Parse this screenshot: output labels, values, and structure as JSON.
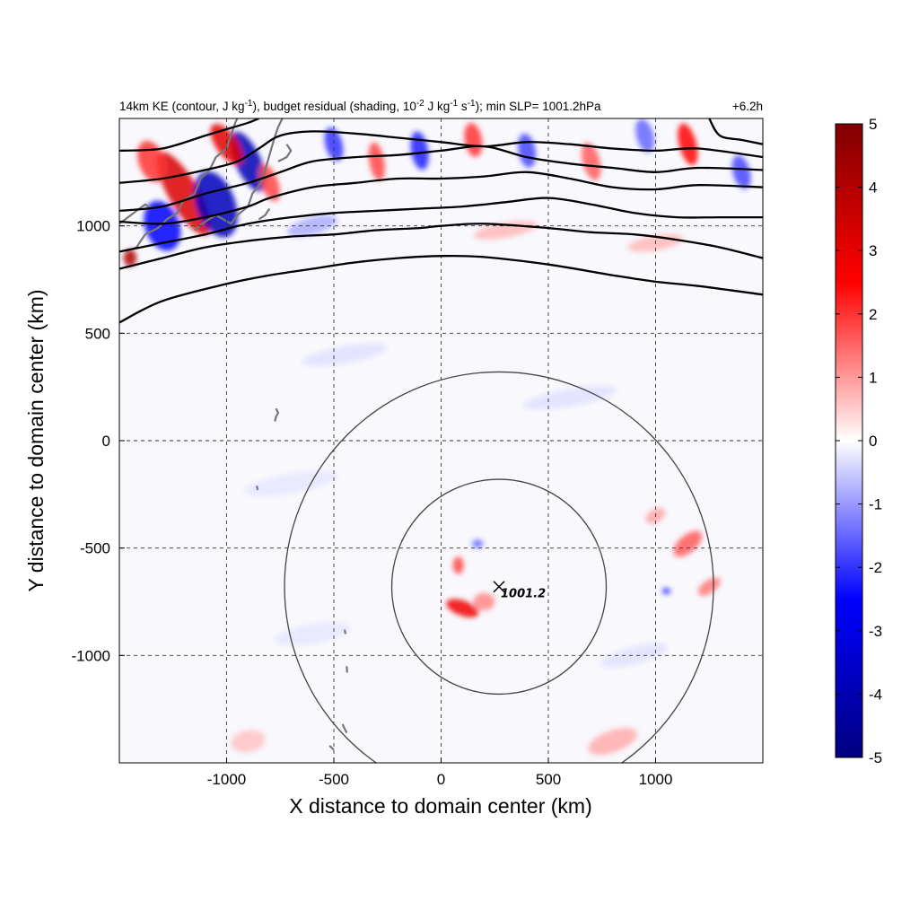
{
  "chart_data": {
    "type": "heatmap",
    "title": {
      "p1": "14km KE (contour, J kg",
      "p1_sup": "-1",
      "p2": "), budget residual (shading, 10",
      "p2_sup": "-2",
      "p3": " J kg",
      "p3_sup": "-1",
      "p4": " s",
      "p4_sup": "-1",
      "p5": "); min SLP= 1001.2hPa"
    },
    "time_label": "+6.2h",
    "xlabel": "X distance to domain center (km)",
    "ylabel": "Y distance to domain center (km)",
    "xlim": [
      -1500,
      1500
    ],
    "ylim": [
      -1500,
      1500
    ],
    "xticks": [
      -1000,
      -500,
      0,
      500,
      1000
    ],
    "yticks": [
      1000,
      500,
      0,
      -500,
      -1000
    ],
    "grid": true,
    "colorbar": {
      "range": [
        -5,
        5
      ],
      "ticks": [
        5,
        4,
        3,
        2,
        1,
        0,
        -1,
        -2,
        -3,
        -4,
        -5
      ],
      "colors": [
        "#000080",
        "#0000ff",
        "#ffffff",
        "#ff0000",
        "#800000"
      ]
    },
    "storm_center": {
      "x": 270,
      "y": -680,
      "label": "1001.2"
    },
    "range_rings_km": [
      500,
      1000
    ],
    "ke_contours": [
      [
        [
          -1500,
          550
        ],
        [
          -1300,
          650
        ],
        [
          -1000,
          730
        ],
        [
          -800,
          770
        ],
        [
          -600,
          800
        ],
        [
          -400,
          830
        ],
        [
          -200,
          850
        ],
        [
          0,
          860
        ],
        [
          200,
          855
        ],
        [
          500,
          820
        ],
        [
          800,
          770
        ],
        [
          1000,
          740
        ],
        [
          1200,
          720
        ],
        [
          1500,
          680
        ]
      ],
      [
        [
          -1500,
          800
        ],
        [
          -1300,
          850
        ],
        [
          -1100,
          900
        ],
        [
          -900,
          930
        ],
        [
          -700,
          950
        ],
        [
          -500,
          960
        ],
        [
          -300,
          980
        ],
        [
          -100,
          990
        ],
        [
          0,
          1000
        ],
        [
          200,
          1010
        ],
        [
          500,
          990
        ],
        [
          700,
          970
        ],
        [
          900,
          960
        ],
        [
          1100,
          935
        ],
        [
          1300,
          900
        ],
        [
          1500,
          850
        ]
      ],
      [
        [
          -1500,
          880
        ],
        [
          -1300,
          920
        ],
        [
          -1100,
          960
        ],
        [
          -900,
          1010
        ],
        [
          -700,
          1040
        ],
        [
          -500,
          1060
        ],
        [
          -300,
          1070
        ],
        [
          -100,
          1080
        ],
        [
          100,
          1090
        ],
        [
          300,
          1110
        ],
        [
          500,
          1130
        ],
        [
          700,
          1100
        ],
        [
          900,
          1060
        ],
        [
          1100,
          1040
        ],
        [
          1300,
          1040
        ],
        [
          1500,
          1040
        ]
      ],
      [
        [
          -1500,
          1020
        ],
        [
          -1300,
          1010
        ],
        [
          -1100,
          1040
        ],
        [
          -900,
          1090
        ],
        [
          -800,
          1130
        ],
        [
          -600,
          1180
        ],
        [
          -400,
          1200
        ],
        [
          -200,
          1220
        ],
        [
          0,
          1220
        ],
        [
          200,
          1230
        ],
        [
          400,
          1250
        ],
        [
          600,
          1220
        ],
        [
          800,
          1180
        ],
        [
          1000,
          1170
        ],
        [
          1200,
          1190
        ],
        [
          1500,
          1180
        ]
      ],
      [
        [
          -1500,
          1070
        ],
        [
          -1300,
          1090
        ],
        [
          -1100,
          1150
        ],
        [
          -900,
          1200
        ],
        [
          -750,
          1250
        ],
        [
          -600,
          1300
        ],
        [
          -400,
          1320
        ],
        [
          -200,
          1330
        ],
        [
          0,
          1350
        ],
        [
          200,
          1370
        ],
        [
          400,
          1320
        ],
        [
          600,
          1290
        ],
        [
          800,
          1270
        ],
        [
          1000,
          1250
        ],
        [
          1200,
          1270
        ],
        [
          1500,
          1260
        ]
      ],
      [
        [
          -1500,
          1200
        ],
        [
          -1300,
          1220
        ],
        [
          -1100,
          1260
        ],
        [
          -950,
          1300
        ],
        [
          -850,
          1360
        ],
        [
          -750,
          1420
        ],
        [
          -600,
          1440
        ],
        [
          -400,
          1430
        ],
        [
          -200,
          1410
        ],
        [
          0,
          1390
        ],
        [
          200,
          1370
        ],
        [
          400,
          1390
        ],
        [
          600,
          1380
        ],
        [
          800,
          1360
        ],
        [
          1000,
          1350
        ],
        [
          1200,
          1360
        ],
        [
          1500,
          1320
        ]
      ],
      [
        [
          -1500,
          1350
        ],
        [
          -1300,
          1360
        ],
        [
          -1100,
          1420
        ],
        [
          -1000,
          1450
        ],
        [
          -900,
          1480
        ],
        [
          -850,
          1500
        ]
      ],
      [
        [
          1250,
          1500
        ],
        [
          1300,
          1420
        ],
        [
          1400,
          1400
        ],
        [
          1500,
          1380
        ]
      ]
    ],
    "shading_features": [
      {
        "x": -1200,
        "y": 1150,
        "rx": 70,
        "ry": 220,
        "rot": -30,
        "v": 3.2
      },
      {
        "x": -1050,
        "y": 1100,
        "rx": 90,
        "ry": 160,
        "rot": -20,
        "v": -3.8
      },
      {
        "x": -900,
        "y": 1300,
        "rx": 60,
        "ry": 150,
        "rot": -25,
        "v": -4.0
      },
      {
        "x": -1000,
        "y": 1380,
        "rx": 50,
        "ry": 110,
        "rot": -35,
        "v": 3.0
      },
      {
        "x": -1300,
        "y": 1000,
        "rx": 80,
        "ry": 120,
        "rot": -20,
        "v": -2.5
      },
      {
        "x": -1450,
        "y": 850,
        "rx": 30,
        "ry": 40,
        "rot": 0,
        "v": 4.0
      },
      {
        "x": -1350,
        "y": 1300,
        "rx": 60,
        "ry": 100,
        "rot": -20,
        "v": 2.0
      },
      {
        "x": -800,
        "y": 1200,
        "rx": 40,
        "ry": 90,
        "rot": -20,
        "v": 1.8
      },
      {
        "x": -500,
        "y": 1380,
        "rx": 40,
        "ry": 80,
        "rot": -15,
        "v": -2.0
      },
      {
        "x": -300,
        "y": 1300,
        "rx": 35,
        "ry": 90,
        "rot": -10,
        "v": 1.8
      },
      {
        "x": -100,
        "y": 1350,
        "rx": 40,
        "ry": 90,
        "rot": -10,
        "v": -2.2
      },
      {
        "x": 150,
        "y": 1400,
        "rx": 40,
        "ry": 80,
        "rot": -10,
        "v": 2.0
      },
      {
        "x": 400,
        "y": 1350,
        "rx": 40,
        "ry": 80,
        "rot": -10,
        "v": -1.8
      },
      {
        "x": 700,
        "y": 1300,
        "rx": 40,
        "ry": 90,
        "rot": -15,
        "v": 1.6
      },
      {
        "x": 950,
        "y": 1420,
        "rx": 40,
        "ry": 80,
        "rot": -15,
        "v": -1.5
      },
      {
        "x": 1150,
        "y": 1380,
        "rx": 40,
        "ry": 100,
        "rot": -15,
        "v": 2.5
      },
      {
        "x": 1400,
        "y": 1250,
        "rx": 40,
        "ry": 80,
        "rot": -15,
        "v": -1.8
      },
      {
        "x": -600,
        "y": 1000,
        "rx": 120,
        "ry": 40,
        "rot": -15,
        "v": -0.8
      },
      {
        "x": 300,
        "y": 980,
        "rx": 150,
        "ry": 35,
        "rot": -10,
        "v": 0.7
      },
      {
        "x": 1000,
        "y": 920,
        "rx": 130,
        "ry": 35,
        "rot": -10,
        "v": 0.7
      },
      {
        "x": 100,
        "y": -780,
        "rx": 80,
        "ry": 35,
        "rot": 20,
        "v": 2.8
      },
      {
        "x": 80,
        "y": -580,
        "rx": 25,
        "ry": 40,
        "rot": 0,
        "v": 1.8
      },
      {
        "x": 170,
        "y": -480,
        "rx": 25,
        "ry": 20,
        "rot": 0,
        "v": -1.5
      },
      {
        "x": 200,
        "y": -750,
        "rx": 50,
        "ry": 40,
        "rot": 0,
        "v": 1.2
      },
      {
        "x": 1150,
        "y": -480,
        "rx": 80,
        "ry": 40,
        "rot": -40,
        "v": 1.6
      },
      {
        "x": 1250,
        "y": -680,
        "rx": 60,
        "ry": 30,
        "rot": -35,
        "v": 1.3
      },
      {
        "x": 1050,
        "y": -700,
        "rx": 20,
        "ry": 15,
        "rot": 0,
        "v": -2.0
      },
      {
        "x": 1000,
        "y": -350,
        "rx": 50,
        "ry": 30,
        "rot": -30,
        "v": 0.9
      },
      {
        "x": 800,
        "y": -1400,
        "rx": 120,
        "ry": 50,
        "rot": -20,
        "v": 0.8
      },
      {
        "x": -900,
        "y": -1400,
        "rx": 80,
        "ry": 50,
        "rot": -10,
        "v": 0.6
      },
      {
        "x": -450,
        "y": 400,
        "rx": 200,
        "ry": 40,
        "rot": -10,
        "v": -0.3
      },
      {
        "x": 600,
        "y": 200,
        "rx": 220,
        "ry": 40,
        "rot": -10,
        "v": -0.3
      },
      {
        "x": -700,
        "y": -200,
        "rx": 220,
        "ry": 45,
        "rot": -10,
        "v": -0.25
      },
      {
        "x": 900,
        "y": -1000,
        "rx": 160,
        "ry": 40,
        "rot": -15,
        "v": -0.3
      },
      {
        "x": -600,
        "y": -900,
        "rx": 180,
        "ry": 45,
        "rot": -10,
        "v": -0.25
      }
    ],
    "coastline": [
      [
        [
          -1470,
          880
        ],
        [
          -1420,
          900
        ],
        [
          -1380,
          960
        ],
        [
          -1320,
          990
        ],
        [
          -1280,
          1030
        ],
        [
          -1230,
          1060
        ],
        [
          -1200,
          1120
        ],
        [
          -1150,
          1150
        ],
        [
          -1120,
          1220
        ],
        [
          -1080,
          1260
        ],
        [
          -1050,
          1320
        ],
        [
          -1000,
          1360
        ],
        [
          -980,
          1420
        ],
        [
          -960,
          1480
        ],
        [
          -950,
          1500
        ]
      ],
      [
        [
          -1500,
          1010
        ],
        [
          -1460,
          1040
        ],
        [
          -1420,
          1070
        ],
        [
          -1380,
          1100
        ],
        [
          -1350,
          1080
        ]
      ],
      [
        [
          -1150,
          980
        ],
        [
          -1100,
          1020
        ],
        [
          -1050,
          1050
        ],
        [
          -980,
          1010
        ],
        [
          -950,
          1050
        ],
        [
          -900,
          1090
        ],
        [
          -880,
          1150
        ],
        [
          -840,
          1200
        ],
        [
          -820,
          1260
        ],
        [
          -800,
          1330
        ],
        [
          -780,
          1400
        ],
        [
          -760,
          1460
        ],
        [
          -740,
          1500
        ]
      ],
      [
        [
          -850,
          1030
        ],
        [
          -820,
          1050
        ],
        [
          -800,
          1080
        ]
      ],
      [
        [
          -760,
          1300
        ],
        [
          -720,
          1320
        ],
        [
          -700,
          1350
        ],
        [
          -720,
          1380
        ]
      ],
      [
        [
          -770,
          150
        ],
        [
          -760,
          130
        ],
        [
          -770,
          110
        ],
        [
          -775,
          90
        ]
      ],
      [
        [
          -860,
          -210
        ],
        [
          -855,
          -230
        ]
      ],
      [
        [
          -450,
          -880
        ],
        [
          -445,
          -900
        ]
      ],
      [
        [
          -440,
          -1050
        ],
        [
          -438,
          -1080
        ]
      ],
      [
        [
          -460,
          -1320
        ],
        [
          -450,
          -1340
        ],
        [
          -440,
          -1360
        ]
      ],
      [
        [
          -520,
          -1420
        ],
        [
          -500,
          -1440
        ]
      ]
    ]
  }
}
